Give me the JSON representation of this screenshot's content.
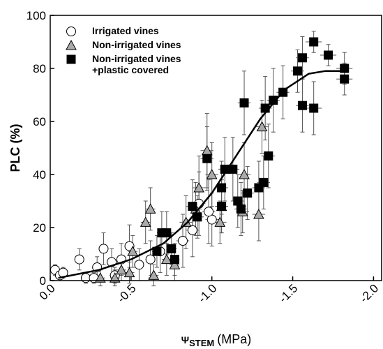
{
  "chart_data": {
    "type": "scatter",
    "x_label": "Ψ",
    "x_label_sub": "STEM",
    "x_label_unit": "(MPa)",
    "y_label": "PLC (%)",
    "xlim": [
      0,
      -2.05
    ],
    "ylim": [
      0,
      100
    ],
    "xticks": [
      {
        "value": 0,
        "label": "0.0"
      },
      -0.5,
      {
        "value": -1,
        "label": "-1.0"
      },
      -1.5,
      {
        "value": -2,
        "label": "-2.0"
      }
    ],
    "yticks": [
      0,
      20,
      40,
      60,
      80,
      100
    ],
    "legend": "top-left",
    "series": [
      {
        "name": "Irrigated vines",
        "marker": "circle",
        "color": "#ffffff",
        "x": [
          -0.03,
          -0.06,
          -0.08,
          -0.18,
          -0.22,
          -0.27,
          -0.29,
          -0.33,
          -0.4,
          -0.38,
          -0.44,
          -0.49,
          -0.55,
          -0.62,
          -0.68,
          -0.82,
          -0.88,
          -0.92,
          -1.0,
          -0.98
        ],
        "values": [
          4,
          2,
          3,
          8,
          1,
          1,
          5,
          12,
          2,
          7,
          8,
          13,
          6,
          8,
          11,
          15,
          19,
          29,
          23,
          26
        ],
        "xerr": [
          0.02,
          0.02,
          0.02,
          0.03,
          0.03,
          0.03,
          0.03,
          0.03,
          0.03,
          0.03,
          0.03,
          0.03,
          0.03,
          0.03,
          0.03,
          0.04,
          0.04,
          0.04,
          0.04,
          0.04
        ],
        "yerr": [
          2,
          2,
          2,
          4,
          2,
          2,
          4,
          6,
          3,
          5,
          6,
          8,
          6,
          7,
          8,
          10,
          10,
          12,
          10,
          12
        ]
      },
      {
        "name": "Non-irrigated vines",
        "marker": "triangle",
        "color": "#aaaaaa",
        "x": [
          -0.31,
          -0.4,
          -0.44,
          -0.49,
          -0.51,
          -0.59,
          -0.62,
          -0.64,
          -0.72,
          -0.77,
          -0.84,
          -0.9,
          -0.92,
          -0.97,
          -1.0,
          -1.05,
          -1.06,
          -1.2,
          -1.31,
          -1.29,
          -1.19
        ],
        "values": [
          1,
          1,
          4,
          3,
          11,
          22,
          27,
          2,
          8,
          6,
          22,
          27,
          35,
          49,
          40,
          22,
          28,
          40,
          58,
          25,
          26
        ],
        "xerr": [
          0.03,
          0.03,
          0.03,
          0.03,
          0.03,
          0.03,
          0.03,
          0.03,
          0.03,
          0.03,
          0.04,
          0.04,
          0.04,
          0.04,
          0.04,
          0.04,
          0.04,
          0.04,
          0.04,
          0.04,
          0.04
        ],
        "yerr": [
          3,
          3,
          4,
          4,
          6,
          8,
          8,
          4,
          6,
          6,
          10,
          10,
          12,
          14,
          12,
          8,
          10,
          12,
          10,
          10,
          8
        ]
      },
      {
        "name": "Non-irrigated vines\n+plastic covered",
        "marker": "square",
        "color": "#000000",
        "x": [
          -0.66,
          -0.69,
          -0.72,
          -0.75,
          -0.77,
          -0.88,
          -0.91,
          -0.97,
          -1.06,
          -1.06,
          -1.08,
          -1.13,
          -1.16,
          -1.18,
          -1.2,
          -1.22,
          -1.29,
          -1.32,
          -1.33,
          -1.35,
          -1.38,
          -1.44,
          -1.53,
          -1.56,
          -1.56,
          -1.63,
          -1.63,
          -1.72,
          -1.82,
          -1.82
        ],
        "values": [
          11,
          18,
          18,
          12,
          8,
          28,
          24,
          46,
          35,
          28,
          42,
          42,
          30,
          27,
          67,
          33,
          35,
          37,
          65,
          47,
          68,
          71,
          79,
          84,
          66,
          65,
          90,
          85,
          80,
          76
        ],
        "xerr": [
          0.03,
          0.03,
          0.03,
          0.03,
          0.03,
          0.04,
          0.04,
          0.04,
          0.04,
          0.04,
          0.04,
          0.04,
          0.04,
          0.04,
          0.04,
          0.04,
          0.04,
          0.04,
          0.04,
          0.04,
          0.04,
          0.04,
          0.04,
          0.04,
          0.04,
          0.05,
          0.05,
          0.05,
          0.05,
          0.05
        ],
        "yerr": [
          6,
          8,
          8,
          6,
          6,
          10,
          8,
          12,
          10,
          10,
          12,
          12,
          10,
          10,
          12,
          10,
          10,
          10,
          12,
          12,
          12,
          10,
          8,
          8,
          10,
          10,
          4,
          4,
          6,
          6
        ]
      }
    ],
    "fit": {
      "color": "#000000",
      "x": [
        -0.05,
        -0.3,
        -0.5,
        -0.7,
        -0.85,
        -1.0,
        -1.15,
        -1.3,
        -1.45,
        -1.6,
        -1.7,
        -1.8
      ],
      "values": [
        1,
        4,
        8,
        14,
        22,
        33,
        47,
        61,
        72,
        78,
        79,
        79
      ]
    }
  }
}
